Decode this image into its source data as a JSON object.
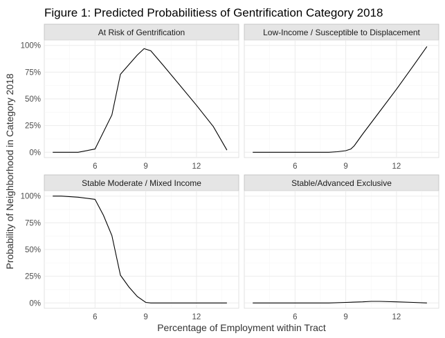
{
  "chart_data": {
    "type": "line",
    "title": "Figure 1: Predicted Probabilitiess of Gentrification Category 2018",
    "xlabel": "Percentage of Employment within Tract",
    "ylabel": "Probability of Neighborhood in Category 2018",
    "xlim": [
      3,
      14.5
    ],
    "ylim": [
      -0.05,
      1.05
    ],
    "x_ticks": [
      6,
      9,
      12
    ],
    "x_tick_labels": [
      "6",
      "9",
      "12"
    ],
    "y_ticks": [
      0,
      0.25,
      0.5,
      0.75,
      1
    ],
    "y_tick_labels": [
      "0%",
      "25%",
      "50%",
      "75%",
      "100%"
    ],
    "grid": true,
    "facets": [
      {
        "label": "At Risk of Gentrification",
        "x": [
          3.5,
          4,
          5,
          6,
          7,
          7.5,
          8,
          8.5,
          8.9,
          9.3,
          10,
          11,
          12,
          13,
          13.8
        ],
        "y": [
          0,
          0,
          0,
          0.03,
          0.35,
          0.73,
          0.82,
          0.91,
          0.97,
          0.95,
          0.82,
          0.63,
          0.44,
          0.24,
          0.02
        ]
      },
      {
        "label": "Low-Income / Susceptible to Displacement",
        "x": [
          3.5,
          5,
          6,
          7,
          8,
          8.5,
          9,
          9.3,
          9.5,
          10,
          11,
          12,
          13,
          13.8
        ],
        "y": [
          0,
          0,
          0,
          0,
          0,
          0.005,
          0.015,
          0.03,
          0.06,
          0.17,
          0.38,
          0.59,
          0.81,
          0.99
        ]
      },
      {
        "label": "Stable Moderate / Mixed Income",
        "x": [
          3.5,
          4,
          5,
          6,
          6.5,
          7,
          7.5,
          8,
          8.5,
          9,
          9.3,
          10,
          11,
          12,
          13,
          13.8
        ],
        "y": [
          1,
          1,
          0.99,
          0.97,
          0.82,
          0.63,
          0.26,
          0.15,
          0.06,
          0.005,
          0,
          0,
          0,
          0,
          0,
          0
        ]
      },
      {
        "label": "Stable/Advanced Exclusive",
        "x": [
          3.5,
          5,
          6,
          7,
          8,
          9,
          10,
          10.5,
          11,
          12,
          13,
          13.8
        ],
        "y": [
          0,
          0,
          0,
          0,
          0,
          0.005,
          0.01,
          0.015,
          0.015,
          0.01,
          0.005,
          0
        ]
      }
    ]
  }
}
